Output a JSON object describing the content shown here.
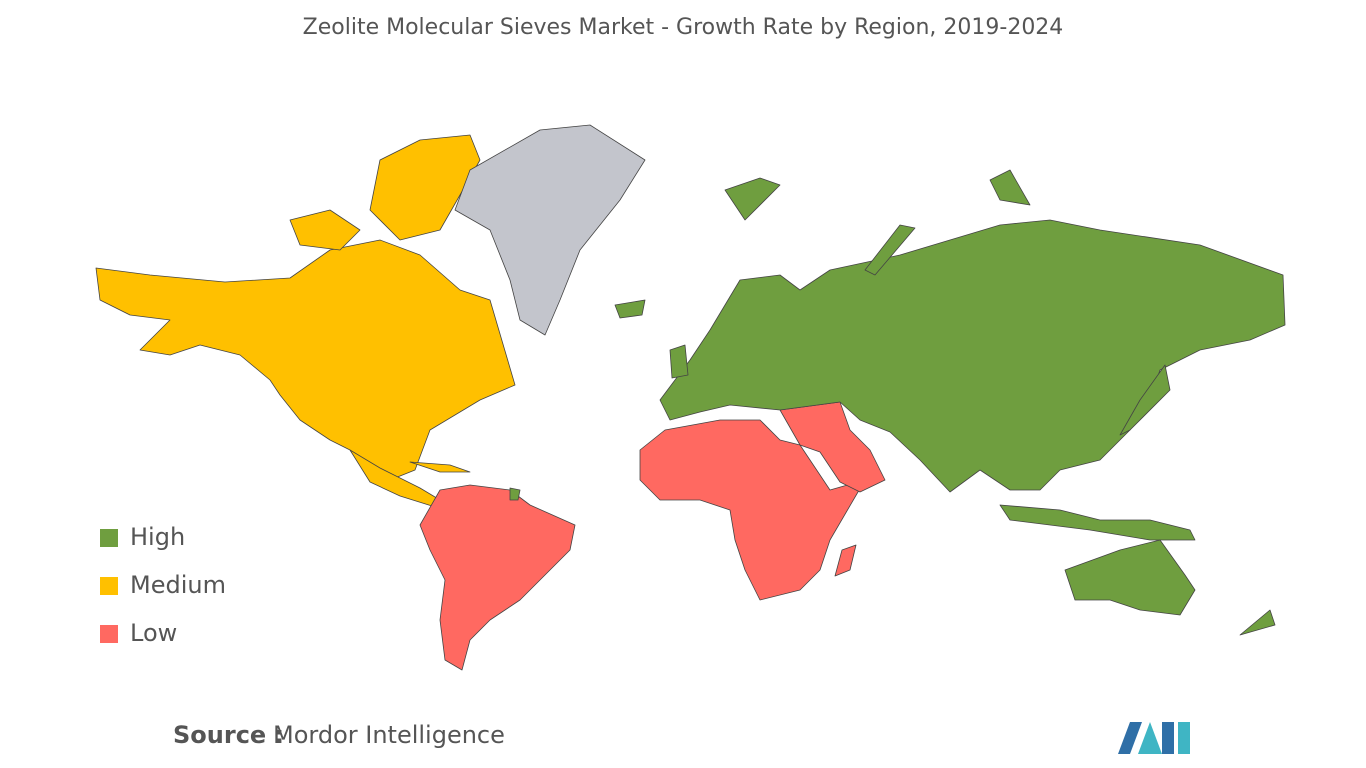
{
  "title": "Zeolite Molecular Sieves Market - Growth Rate by Region, 2019-2024",
  "legend": [
    {
      "label": "High",
      "color": "#6f9e3f"
    },
    {
      "label": "Medium",
      "color": "#ffc000"
    },
    {
      "label": "Low",
      "color": "#ff6961"
    }
  ],
  "source": {
    "label": "Source :",
    "text": "Mordor Intelligence"
  }
}
